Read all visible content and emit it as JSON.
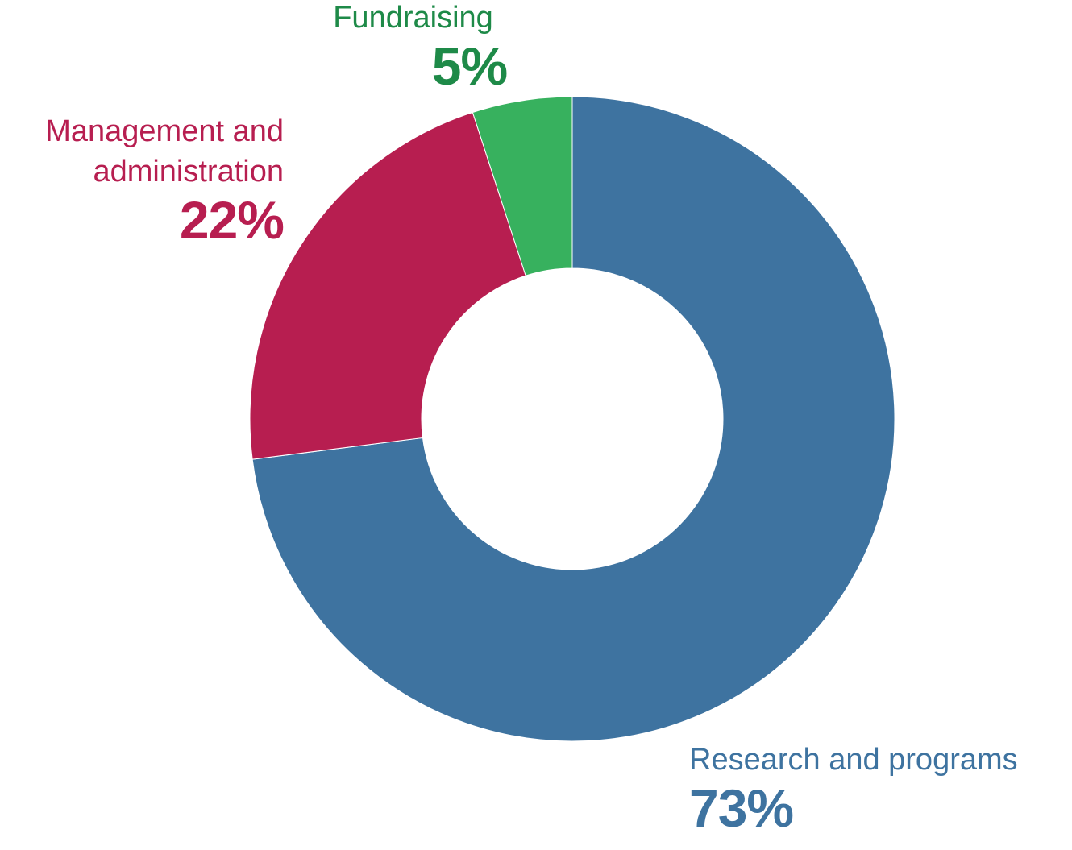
{
  "chart_data": {
    "type": "donut",
    "categories": [
      "Research and programs",
      "Management and administration",
      "Fundraising"
    ],
    "values": [
      73,
      22,
      5
    ],
    "value_labels": [
      "73%",
      "22%",
      "5%"
    ],
    "colors": [
      "#3e73a0",
      "#b71e50",
      "#37b15e"
    ]
  }
}
